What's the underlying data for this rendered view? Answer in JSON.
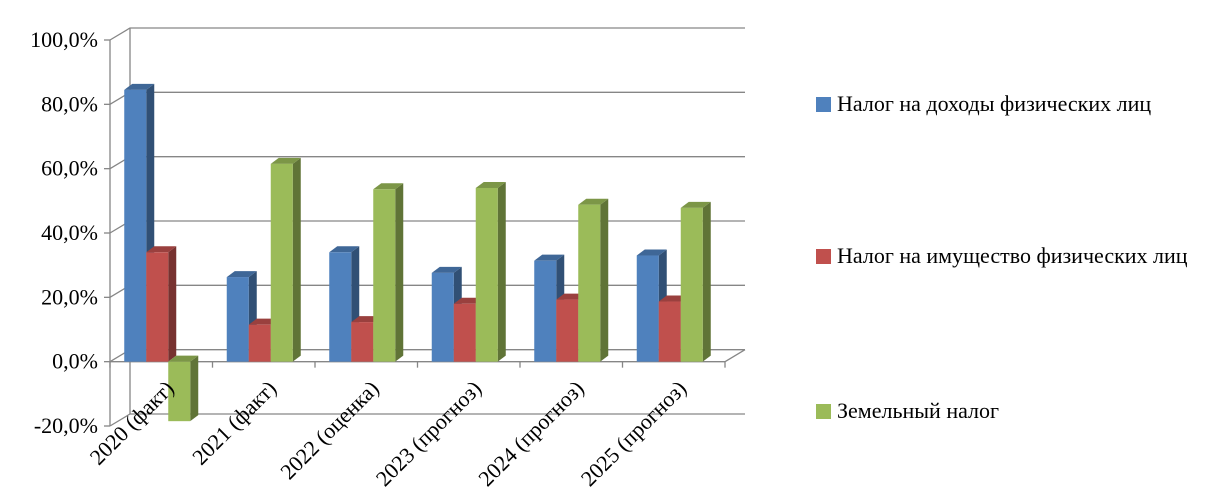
{
  "chart_data": {
    "type": "bar",
    "categories": [
      "2020 (факт)",
      "2021 (факт)",
      "2022 (оценка)",
      "2023 (прогноз)",
      "2024 (прогноз)",
      "2025 (прогноз)"
    ],
    "series": [
      {
        "name": "Налог на доходы физических лиц",
        "color": "#4F81BD",
        "values": [
          84.5,
          26.3,
          34.0,
          27.6,
          31.4,
          33.0
        ]
      },
      {
        "name": "Налог на имущество физических лиц",
        "color": "#C0504D",
        "values": [
          34.0,
          11.5,
          12.3,
          18.0,
          19.3,
          18.7
        ]
      },
      {
        "name": "Земельный налог",
        "color": "#9BBB59",
        "values": [
          -18.5,
          61.5,
          53.6,
          54.0,
          48.8,
          47.8
        ]
      }
    ],
    "y_ticks": [
      "100,0%",
      "80,0%",
      "60,0%",
      "40,0%",
      "20,0%",
      "0,0%",
      "-20,0%"
    ],
    "ylim": [
      -20,
      100
    ],
    "grid": true,
    "legend_position": "right"
  }
}
